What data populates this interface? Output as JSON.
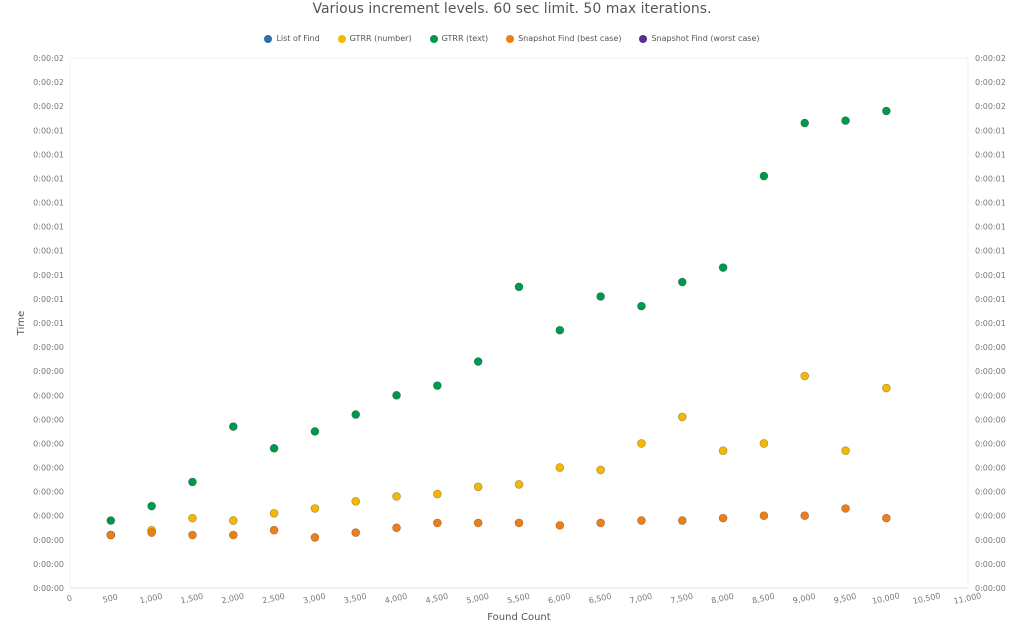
{
  "chart_data": {
    "type": "scatter",
    "title": "Various increment levels. 60 sec limit. 50 max iterations.",
    "xlabel": "Found Count",
    "ylabel": "Time",
    "xlim": [
      0,
      11000
    ],
    "x_ticks": [
      "0",
      "500",
      "1,000",
      "1,500",
      "2,000",
      "2,500",
      "3,000",
      "3,500",
      "4,000",
      "4,500",
      "5,000",
      "5,500",
      "6,000",
      "6,500",
      "7,000",
      "7,500",
      "8,000",
      "8,500",
      "9,000",
      "9,500",
      "10,000",
      "10,500",
      "11,000"
    ],
    "ylim": [
      0,
      2.2
    ],
    "y_ticks": [
      "0:00:00",
      "0:00:00",
      "0:00:00",
      "0:00:00",
      "0:00:00",
      "0:00:00",
      "0:00:00",
      "0:00:00",
      "0:00:00",
      "0:00:00",
      "0:00:00",
      "0:00:01",
      "0:00:01",
      "0:00:01",
      "0:00:01",
      "0:00:01",
      "0:00:01",
      "0:00:01",
      "0:00:01",
      "0:00:01",
      "0:00:02",
      "0:00:02",
      "0:00:02"
    ],
    "y_unit": "seconds",
    "legend_position": "top-center",
    "grid": false,
    "x": [
      500,
      1000,
      1500,
      2000,
      2500,
      3000,
      3500,
      4000,
      4500,
      5000,
      5500,
      6000,
      6500,
      7000,
      7500,
      8000,
      8500,
      9000,
      9500,
      10000
    ],
    "series": [
      {
        "name": "List of Find",
        "color": "#2e6fa7",
        "values": []
      },
      {
        "name": "GTRR (number)",
        "color": "#f5b800",
        "values": [
          0.22,
          0.24,
          0.29,
          0.28,
          0.31,
          0.33,
          0.36,
          0.38,
          0.39,
          0.42,
          0.43,
          0.5,
          0.49,
          0.6,
          0.71,
          0.57,
          0.6,
          0.88,
          0.57,
          0.83
        ]
      },
      {
        "name": "GTRR (text)",
        "color": "#00994c",
        "values": [
          0.28,
          0.34,
          0.44,
          0.67,
          0.58,
          0.65,
          0.72,
          0.8,
          0.84,
          0.94,
          1.25,
          1.07,
          1.21,
          1.17,
          1.27,
          1.33,
          1.71,
          1.93,
          1.94,
          1.98
        ]
      },
      {
        "name": "Snapshot Find (best case)",
        "color": "#ee7f18",
        "values": [
          0.22,
          0.23,
          0.22,
          0.22,
          0.24,
          0.21,
          0.23,
          0.25,
          0.27,
          0.27,
          0.27,
          0.26,
          0.27,
          0.28,
          0.28,
          0.29,
          0.3,
          0.3,
          0.33,
          0.29
        ]
      },
      {
        "name": "Snapshot Find (worst case)",
        "color": "#5c2d91",
        "values": []
      }
    ]
  }
}
